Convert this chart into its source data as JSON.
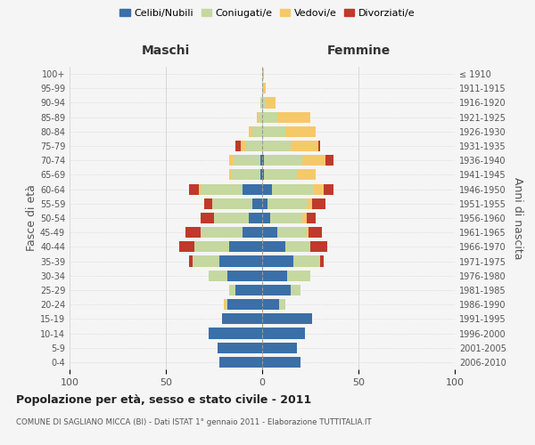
{
  "age_groups": [
    "0-4",
    "5-9",
    "10-14",
    "15-19",
    "20-24",
    "25-29",
    "30-34",
    "35-39",
    "40-44",
    "45-49",
    "50-54",
    "55-59",
    "60-64",
    "65-69",
    "70-74",
    "75-79",
    "80-84",
    "85-89",
    "90-94",
    "95-99",
    "100+"
  ],
  "birth_years": [
    "2006-2010",
    "2001-2005",
    "1996-2000",
    "1991-1995",
    "1986-1990",
    "1981-1985",
    "1976-1980",
    "1971-1975",
    "1966-1970",
    "1961-1965",
    "1956-1960",
    "1951-1955",
    "1946-1950",
    "1941-1945",
    "1936-1940",
    "1931-1935",
    "1926-1930",
    "1921-1925",
    "1916-1920",
    "1911-1915",
    "≤ 1910"
  ],
  "males": {
    "celibi": [
      22,
      23,
      28,
      21,
      18,
      14,
      18,
      22,
      17,
      10,
      7,
      5,
      10,
      1,
      1,
      0,
      0,
      0,
      0,
      0,
      0
    ],
    "coniugati": [
      0,
      0,
      0,
      0,
      1,
      3,
      10,
      14,
      18,
      22,
      18,
      21,
      22,
      15,
      14,
      9,
      5,
      2,
      1,
      0,
      0
    ],
    "vedovi": [
      0,
      0,
      0,
      0,
      1,
      0,
      0,
      0,
      0,
      0,
      0,
      0,
      1,
      1,
      2,
      2,
      2,
      1,
      0,
      0,
      0
    ],
    "divorziati": [
      0,
      0,
      0,
      0,
      0,
      0,
      0,
      2,
      8,
      8,
      7,
      4,
      5,
      0,
      0,
      3,
      0,
      0,
      0,
      0,
      0
    ]
  },
  "females": {
    "nubili": [
      20,
      18,
      22,
      26,
      9,
      15,
      13,
      16,
      12,
      8,
      4,
      3,
      5,
      1,
      1,
      0,
      0,
      0,
      0,
      0,
      0
    ],
    "coniugate": [
      0,
      0,
      0,
      0,
      3,
      5,
      12,
      14,
      13,
      15,
      17,
      20,
      22,
      17,
      20,
      15,
      12,
      8,
      2,
      1,
      0
    ],
    "vedove": [
      0,
      0,
      0,
      0,
      0,
      0,
      0,
      0,
      0,
      1,
      2,
      3,
      5,
      10,
      12,
      14,
      16,
      17,
      5,
      1,
      1
    ],
    "divorziate": [
      0,
      0,
      0,
      0,
      0,
      0,
      0,
      2,
      9,
      7,
      5,
      7,
      5,
      0,
      4,
      1,
      0,
      0,
      0,
      0,
      0
    ]
  },
  "colors": {
    "celibi": "#3a6fa8",
    "coniugati": "#c5d8a0",
    "vedovi": "#f5c96a",
    "divorziati": "#c0392b"
  },
  "xlim": 100,
  "title": "Popolazione per età, sesso e stato civile - 2011",
  "subtitle": "COMUNE DI SAGLIANO MICCA (BI) - Dati ISTAT 1° gennaio 2011 - Elaborazione TUTTITALIA.IT",
  "ylabel_left": "Fasce di età",
  "ylabel_right": "Anni di nascita",
  "xlabel_left": "Maschi",
  "xlabel_right": "Femmine",
  "bg_color": "#f5f5f5",
  "grid_color": "#cccccc"
}
